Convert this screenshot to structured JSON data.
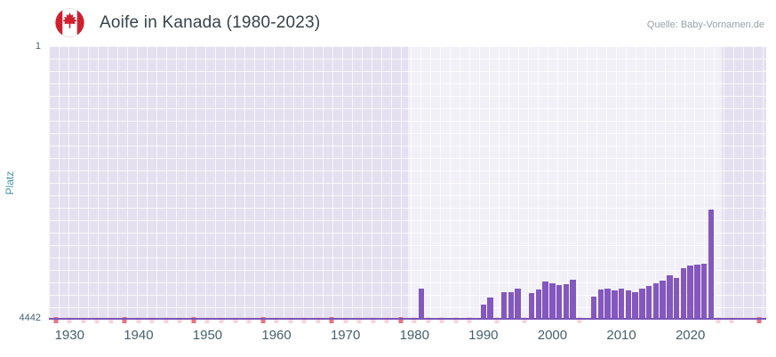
{
  "header": {
    "title": "Aoife in Kanada (1980-2023)",
    "source": "Quelle: Baby-Vornamen.de"
  },
  "chart_data": {
    "type": "bar",
    "title": "Aoife in Kanada (1980-2023)",
    "xlabel": "",
    "ylabel": "Platz",
    "grid": true,
    "legend": "none",
    "y_axis": {
      "min": 1,
      "max": 4442,
      "inverted": true,
      "top_label": "1",
      "bottom_label": "4442"
    },
    "x_axis": {
      "min": 1927,
      "max": 2031,
      "ticks": [
        "1930",
        "1940",
        "1950",
        "1960",
        "1970",
        "1980",
        "1990",
        "2000",
        "2010",
        "2020"
      ]
    },
    "highlight_range": [
      1979,
      2024.5
    ],
    "points": [
      {
        "year": 1981,
        "rank": 3930
      },
      {
        "year": 1990,
        "rank": 4190
      },
      {
        "year": 1991,
        "rank": 4080
      },
      {
        "year": 1993,
        "rank": 4000
      },
      {
        "year": 1994,
        "rank": 3990
      },
      {
        "year": 1995,
        "rank": 3930
      },
      {
        "year": 1997,
        "rank": 4010
      },
      {
        "year": 1998,
        "rank": 3950
      },
      {
        "year": 1999,
        "rank": 3820
      },
      {
        "year": 2000,
        "rank": 3850
      },
      {
        "year": 2001,
        "rank": 3880
      },
      {
        "year": 2002,
        "rank": 3860
      },
      {
        "year": 2003,
        "rank": 3800
      },
      {
        "year": 2006,
        "rank": 4060
      },
      {
        "year": 2007,
        "rank": 3950
      },
      {
        "year": 2008,
        "rank": 3940
      },
      {
        "year": 2009,
        "rank": 3970
      },
      {
        "year": 2010,
        "rank": 3930
      },
      {
        "year": 2011,
        "rank": 3960
      },
      {
        "year": 2012,
        "rank": 3990
      },
      {
        "year": 2013,
        "rank": 3940
      },
      {
        "year": 2014,
        "rank": 3900
      },
      {
        "year": 2015,
        "rank": 3850
      },
      {
        "year": 2016,
        "rank": 3810
      },
      {
        "year": 2017,
        "rank": 3720
      },
      {
        "year": 2018,
        "rank": 3760
      },
      {
        "year": 2019,
        "rank": 3600
      },
      {
        "year": 2020,
        "rank": 3560
      },
      {
        "year": 2021,
        "rank": 3550
      },
      {
        "year": 2022,
        "rank": 3540
      },
      {
        "year": 2023,
        "rank": 2650
      }
    ],
    "no_data_markers": {
      "strong_years": [
        1928,
        1938,
        1948,
        1958,
        1968,
        1978,
        2030
      ],
      "light_years": [
        1930,
        1932,
        1934,
        1936,
        1940,
        1942,
        1944,
        1946,
        1950,
        1952,
        1954,
        1956,
        1960,
        1962,
        1964,
        1966,
        1970,
        1972,
        1974,
        1976,
        1980,
        1982,
        1984,
        1986,
        1988,
        1992,
        1996,
        2004,
        2024,
        2026
      ]
    },
    "colors": {
      "bar": "#8458be",
      "baseline": "#7b55b6",
      "plot_bg": "#e5e0ef",
      "marker_light": "#f7d3dc",
      "marker_strong": "#e87380",
      "axis_text": "#46606e",
      "ylabel_color": "#4b96a6",
      "title_color": "#37424a",
      "source_color": "#9aa0a6",
      "flag_red": "#d21f2e"
    }
  }
}
